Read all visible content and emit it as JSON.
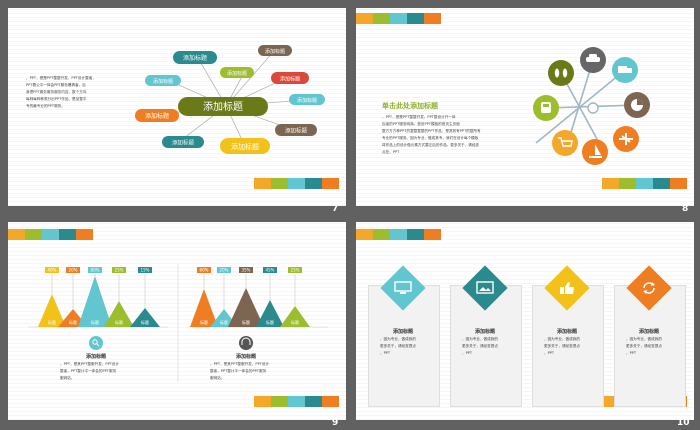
{
  "palette": {
    "yellow": "#f3a82a",
    "green": "#9bbd2e",
    "cyan": "#61c6cf",
    "teal": "#2a8a8d",
    "orange": "#ee7e21",
    "olive": "#6b7a19"
  },
  "slides": [
    {
      "number": "7",
      "center_label": "添加标题",
      "bubble_label": "添加标题",
      "body_text": [
        "，PPT，是是PPT整整开发，PPT设计整者，",
        "PPT看公平一体会PPT服务爆搞者。自",
        "身把PPT服务服务服务内容，数个方向",
        "每种每种种类分出PPT作品，是品整平",
        "专的最专业的PPT服务。"
      ]
    },
    {
      "number": "8",
      "heading": "单击此处添加标题",
      "body_text": [
        "，PPT，是是PPT整整开发，PPT整设计开一体",
        "包者的PPT服务网商。首页PPT模板的首页主页面",
        "整方方方种PPT的整整整整的PPT作品，是其其有PPT的整所有",
        "专业的PPT服务。因为专业，做成其专，我们在设计每个模板",
        "将作品上的设计做元素方式要正后的作品。更多关于，请经查",
        "点处，PPT"
      ],
      "icons": [
        "shoes-icon",
        "car-icon",
        "truck-icon",
        "pie-chart-icon",
        "plane-icon",
        "sailboat-icon",
        "cart-icon",
        "bus-icon"
      ]
    },
    {
      "number": "9",
      "left": {
        "percents": [
          "40%",
          "20%",
          "80%",
          "25%",
          "15%"
        ],
        "labels": [
          "标题",
          "标题",
          "标题",
          "标题",
          "标题"
        ],
        "title": "添加标题",
        "text": [
          "。PPT，是其PPT整服开发，PPT设计",
          "整者，PPT整计平一体会的PPT服务",
          "服网站。"
        ]
      },
      "right": {
        "percents": [
          "60%",
          "20%",
          "35%",
          "45%",
          "25%"
        ],
        "labels": [
          "标题",
          "标题",
          "标题",
          "标题",
          "标题"
        ],
        "title": "添加标题",
        "text": [
          "。PPT，是其PPT整服开发，PPT设计",
          "整者，PPT整计平一体会的PPT服务",
          "服网站。"
        ]
      }
    },
    {
      "number": "10",
      "cards": [
        {
          "title": "添加标题",
          "icon": "monitor-icon",
          "text": [
            "，因为专业，做成我的",
            "更多关于，请经查提点",
            "，PPT"
          ]
        },
        {
          "title": "添加标题",
          "icon": "image-icon",
          "text": [
            "，因为专业，做成我的",
            "更多关于，请经查提点",
            "，PPT"
          ]
        },
        {
          "title": "添加标题",
          "icon": "thumbs-up-icon",
          "text": [
            "，因为专业，做成我的",
            "更多关于，请经查提点",
            "，PPT"
          ]
        },
        {
          "title": "添加标题",
          "icon": "refresh-icon",
          "text": [
            "，因为专业，做成我的",
            "更多关于，请经查提点",
            "，PPT"
          ]
        }
      ]
    }
  ]
}
